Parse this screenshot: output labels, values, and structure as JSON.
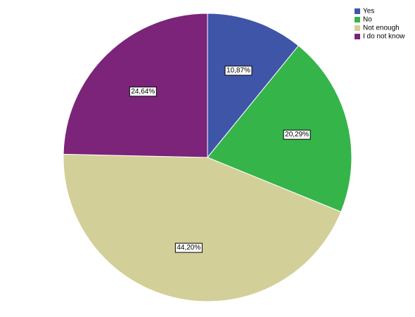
{
  "chart_data": {
    "type": "pie",
    "categories": [
      "Yes",
      "No",
      "Not enough",
      "I do not know"
    ],
    "values": [
      10.87,
      20.29,
      44.2,
      24.64
    ],
    "value_labels": [
      "10,87%",
      "20,29%",
      "44,20%",
      "24,64%"
    ],
    "colors": [
      "#3f55a8",
      "#35b44a",
      "#d3cf98",
      "#7b2479"
    ],
    "legend": "top-right"
  }
}
